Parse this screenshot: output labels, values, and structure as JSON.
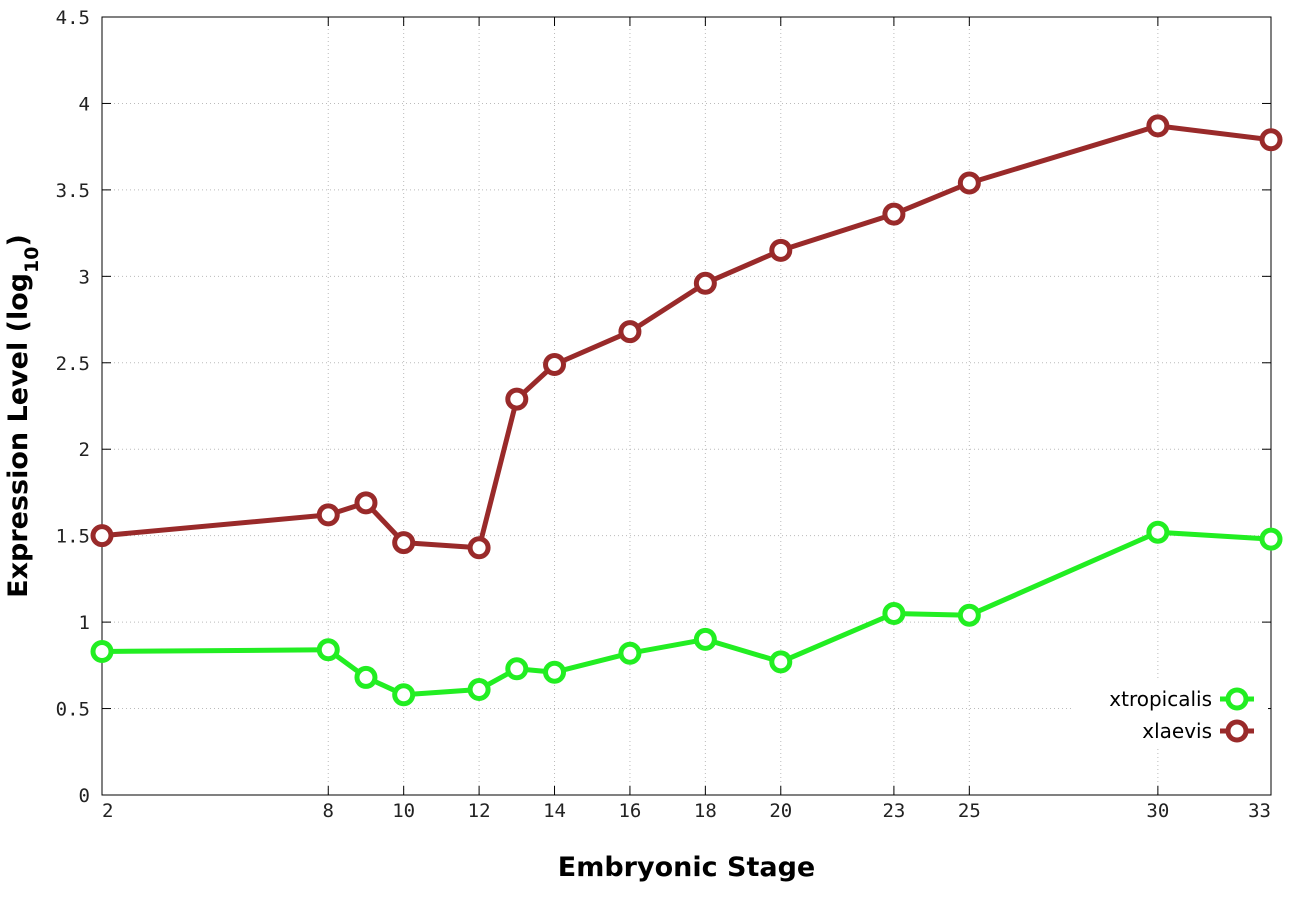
{
  "chart_data": {
    "type": "line",
    "title": "",
    "xlabel": "Embryonic Stage",
    "ylabel_main": "Expression Level (log",
    "ylabel_sub": "10",
    "ylabel_end": ")",
    "x": [
      2,
      8,
      9,
      10,
      12,
      13,
      14,
      16,
      18,
      20,
      23,
      25,
      30,
      33
    ],
    "x_ticks": [
      2,
      8,
      10,
      12,
      14,
      16,
      18,
      20,
      23,
      25,
      30,
      33
    ],
    "y_ticks": [
      0,
      0.5,
      1,
      1.5,
      2,
      2.5,
      3,
      3.5,
      4,
      4.5
    ],
    "y_tick_labels": [
      "0",
      "0.5",
      "1",
      "1.5",
      "2",
      "2.5",
      "3",
      "3.5",
      "4",
      "4.5"
    ],
    "xlim": [
      2,
      33
    ],
    "ylim": [
      0,
      4.5
    ],
    "grid": true,
    "legend_position": "bottom-right",
    "series": [
      {
        "name": "xtropicalis",
        "color": "#22ee22",
        "values": [
          0.83,
          0.84,
          0.68,
          0.58,
          0.61,
          0.73,
          0.71,
          0.82,
          0.9,
          0.77,
          1.05,
          1.04,
          1.52,
          1.48
        ]
      },
      {
        "name": "xlaevis",
        "color": "#992a2a",
        "values": [
          1.5,
          1.62,
          1.69,
          1.46,
          1.43,
          2.29,
          2.49,
          2.68,
          2.96,
          3.15,
          3.36,
          3.54,
          3.87,
          3.79
        ]
      }
    ]
  }
}
